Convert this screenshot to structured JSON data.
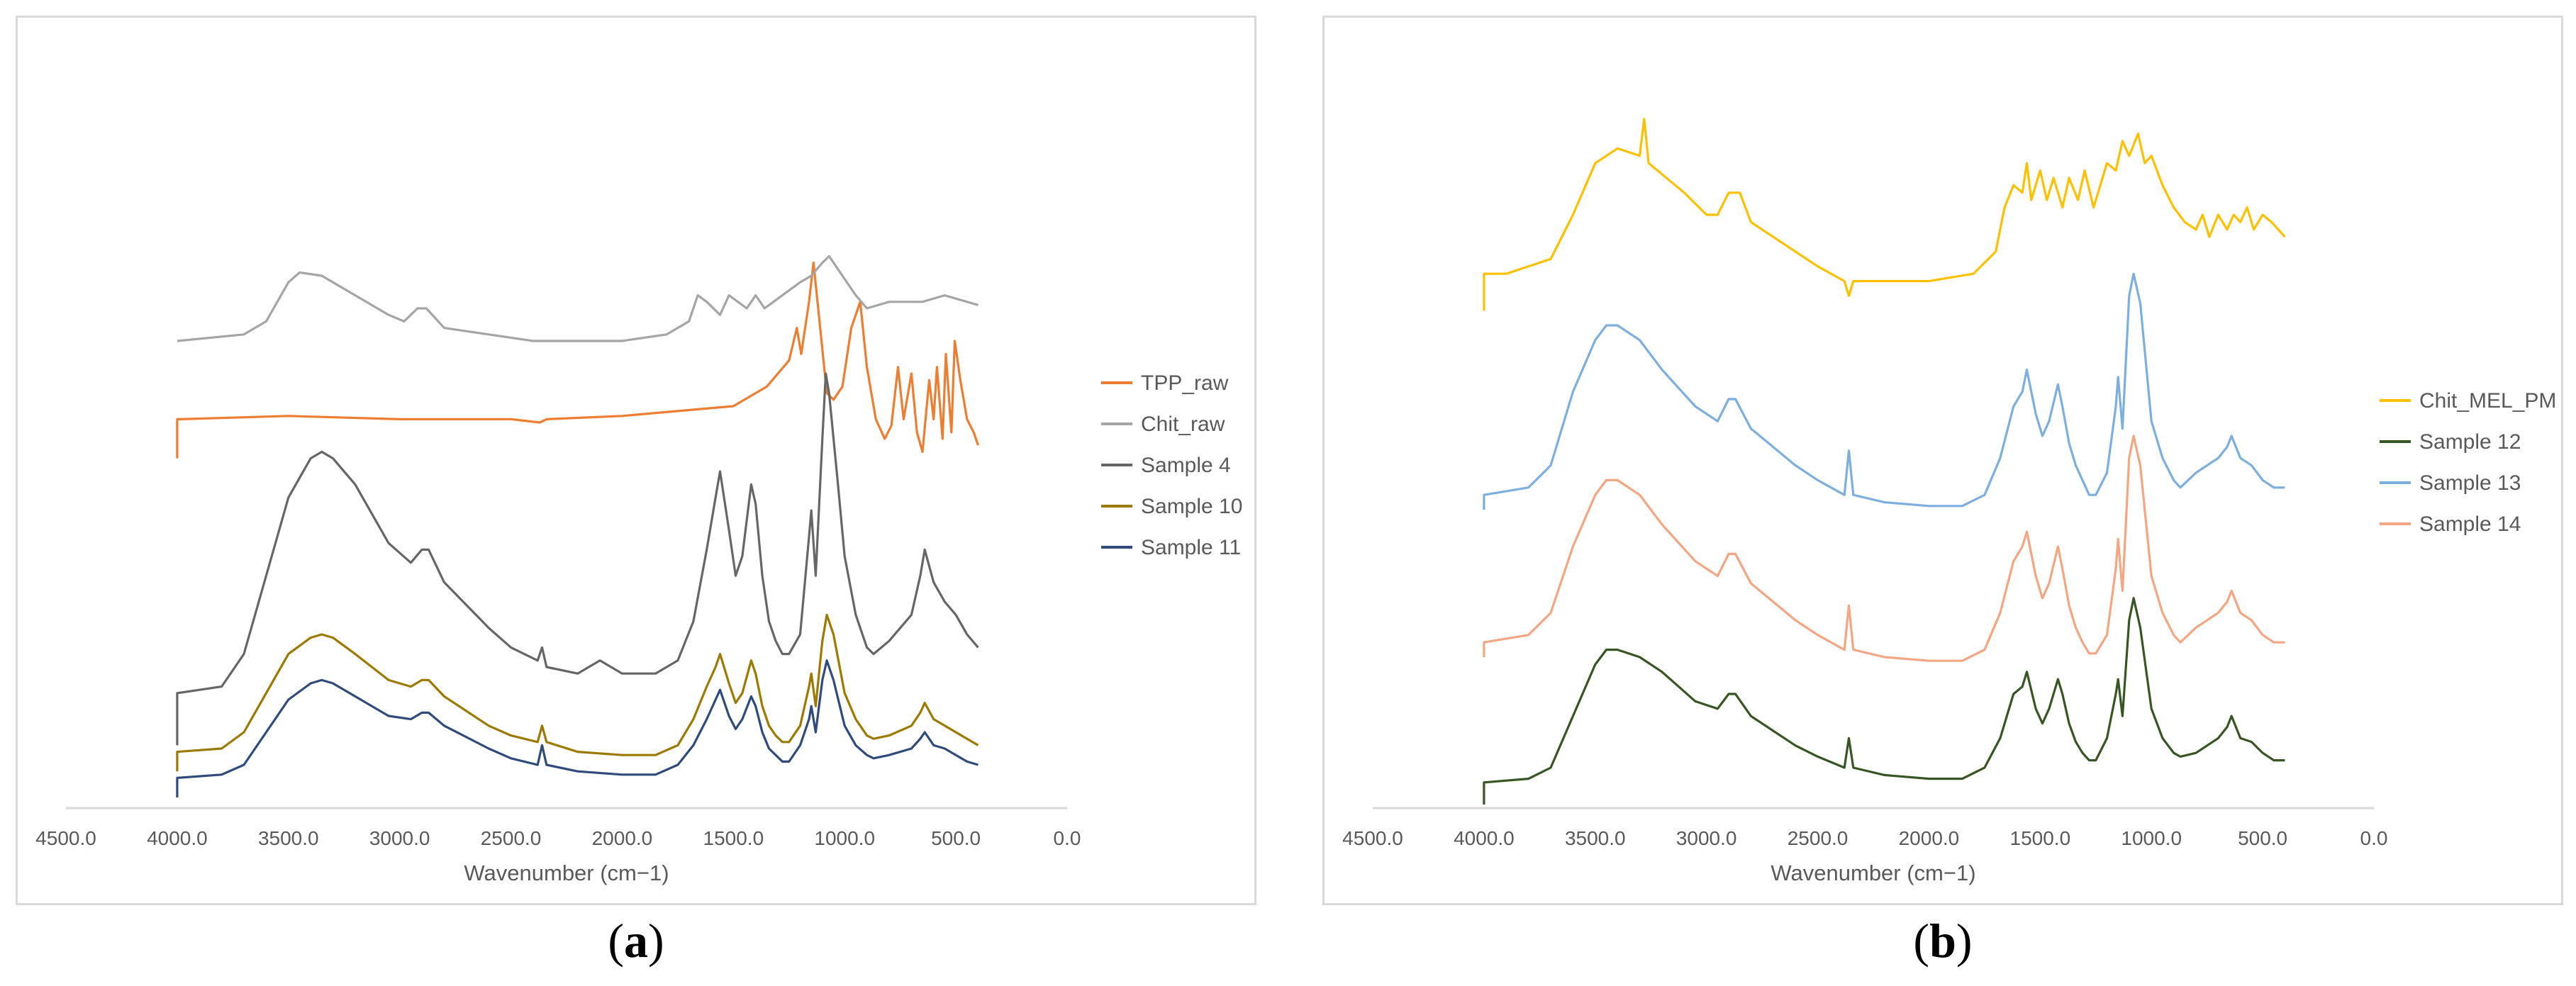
{
  "captions": {
    "a": "a",
    "b": "b"
  },
  "chart_data": [
    {
      "type": "line",
      "panel": "a",
      "title": "",
      "xlabel": "Wavenumber (cm−1)",
      "ylabel": "",
      "xlim": [
        4500,
        0
      ],
      "x_reversed": true,
      "xticks": [
        "4500.0",
        "4000.0",
        "3500.0",
        "3000.0",
        "2500.0",
        "2000.0",
        "1500.0",
        "1000.0",
        "500.0",
        "0.0"
      ],
      "xtick_values": [
        4500,
        4000,
        3500,
        3000,
        2500,
        2000,
        1500,
        1000,
        500,
        0
      ],
      "ylim": [
        0,
        100
      ],
      "legend_position": "right",
      "series": [
        {
          "name": "TPP_raw",
          "color": "#ed7d31",
          "x": [
            4000,
            4000,
            3990,
            3500,
            3000,
            2500,
            2370,
            2340,
            2000,
            1500,
            1350,
            1250,
            1215,
            1195,
            1160,
            1140,
            1110,
            1080,
            1050,
            1010,
            970,
            930,
            900,
            860,
            820,
            790,
            760,
            735,
            700,
            675,
            650,
            620,
            600,
            585,
            560,
            545,
            520,
            505,
            480,
            450,
            420,
            400
          ],
          "y": [
            52,
            58,
            58,
            58.5,
            58,
            58,
            57.5,
            58,
            58.5,
            60,
            63,
            67,
            72,
            68,
            76,
            82,
            72,
            62,
            61,
            63,
            72,
            76,
            66,
            58,
            55,
            57,
            66,
            58,
            65,
            56,
            53,
            64,
            58,
            66,
            55,
            68,
            56,
            70,
            64,
            58,
            56,
            54
          ]
        },
        {
          "name": "Chit_raw",
          "color": "#a5a5a5",
          "x": [
            4000,
            3700,
            3600,
            3500,
            3450,
            3350,
            3200,
            3050,
            2980,
            2920,
            2880,
            2800,
            2600,
            2400,
            2000,
            1800,
            1700,
            1660,
            1620,
            1560,
            1520,
            1440,
            1400,
            1360,
            1320,
            1200,
            1150,
            1100,
            1070,
            1030,
            950,
            900,
            800,
            650,
            550,
            450,
            400
          ],
          "y": [
            70,
            71,
            73,
            79,
            80.5,
            80,
            77,
            74,
            73,
            75,
            75,
            72,
            71,
            70,
            70,
            71,
            73,
            77,
            76,
            74,
            77,
            75,
            77,
            75,
            76,
            79,
            80,
            82,
            83,
            81,
            77,
            75,
            76,
            76,
            77,
            76,
            75.5
          ]
        },
        {
          "name": "Sample 4",
          "color": "#666666",
          "x": [
            4000,
            4000,
            3800,
            3700,
            3600,
            3500,
            3400,
            3350,
            3300,
            3200,
            3050,
            2950,
            2900,
            2870,
            2800,
            2600,
            2500,
            2380,
            2360,
            2340,
            2200,
            2100,
            2000,
            1850,
            1750,
            1680,
            1620,
            1580,
            1560,
            1520,
            1490,
            1460,
            1420,
            1400,
            1370,
            1340,
            1310,
            1280,
            1250,
            1200,
            1160,
            1150,
            1130,
            1100,
            1085,
            1070,
            1030,
            1000,
            950,
            900,
            870,
            800,
            700,
            660,
            640,
            600,
            550,
            500,
            450,
            400
          ],
          "y": [
            8,
            16,
            17,
            22,
            34,
            46,
            52,
            53,
            52,
            48,
            39,
            36,
            38,
            38,
            33,
            26,
            23,
            21,
            23,
            20,
            19,
            21,
            19,
            19,
            21,
            27,
            38,
            46,
            50,
            41,
            34,
            37,
            48,
            45,
            34,
            27,
            24,
            22,
            22,
            25,
            40,
            44,
            34,
            55,
            65,
            62,
            48,
            37,
            28,
            23,
            22,
            24,
            28,
            34,
            38,
            33,
            30,
            28,
            25,
            23
          ]
        },
        {
          "name": "Sample 10",
          "color": "#9c7a00",
          "x": [
            4000,
            4000,
            3800,
            3700,
            3600,
            3500,
            3400,
            3350,
            3300,
            3200,
            3050,
            2950,
            2900,
            2870,
            2800,
            2600,
            2500,
            2380,
            2360,
            2340,
            2200,
            2000,
            1850,
            1750,
            1680,
            1620,
            1580,
            1560,
            1520,
            1490,
            1460,
            1420,
            1400,
            1370,
            1340,
            1310,
            1280,
            1250,
            1200,
            1160,
            1150,
            1130,
            1100,
            1080,
            1050,
            1000,
            950,
            900,
            870,
            800,
            700,
            660,
            640,
            600,
            550,
            500,
            450,
            400
          ],
          "y": [
            4,
            7,
            7.5,
            10,
            16,
            22,
            24.5,
            25,
            24.5,
            22,
            18,
            17,
            18,
            18,
            15.5,
            11,
            9.5,
            8.5,
            11,
            8.5,
            7,
            6.5,
            6.5,
            8,
            12,
            17,
            20,
            22,
            17.5,
            14.5,
            16,
            21,
            19,
            14,
            11,
            9.5,
            8.5,
            8.5,
            11,
            17,
            19,
            14,
            24,
            28,
            25,
            16,
            12,
            9.5,
            9,
            9.5,
            11,
            13,
            14.5,
            12,
            11,
            10,
            9,
            8
          ]
        },
        {
          "name": "Sample 11",
          "color": "#2f4b7c",
          "x": [
            4000,
            4000,
            3800,
            3700,
            3600,
            3500,
            3400,
            3350,
            3300,
            3200,
            3050,
            2950,
            2900,
            2870,
            2800,
            2600,
            2500,
            2380,
            2360,
            2340,
            2200,
            2000,
            1850,
            1750,
            1680,
            1620,
            1580,
            1560,
            1520,
            1490,
            1460,
            1420,
            1400,
            1370,
            1340,
            1310,
            1280,
            1250,
            1200,
            1160,
            1150,
            1130,
            1100,
            1080,
            1050,
            1000,
            950,
            900,
            870,
            800,
            700,
            660,
            640,
            600,
            550,
            500,
            450,
            400
          ],
          "y": [
            0,
            3,
            3.5,
            5,
            10,
            15,
            17.5,
            18,
            17.5,
            15.5,
            12.5,
            12,
            13,
            13,
            11,
            7.5,
            6,
            5,
            8,
            5,
            4,
            3.5,
            3.5,
            5,
            8,
            12,
            15,
            16.5,
            12.5,
            10.5,
            12,
            15.5,
            14,
            10,
            7.5,
            6.5,
            5.5,
            5.5,
            8,
            12,
            14,
            10,
            18,
            21,
            18,
            11,
            8,
            6.5,
            6,
            6.5,
            7.5,
            9,
            10,
            8,
            7.5,
            6.5,
            5.5,
            5
          ]
        }
      ]
    },
    {
      "type": "line",
      "panel": "b",
      "title": "",
      "xlabel": "Wavenumber (cm−1)",
      "ylabel": "",
      "xlim": [
        4500,
        0
      ],
      "x_reversed": true,
      "xticks": [
        "4500.0",
        "4000.0",
        "3500.0",
        "3000.0",
        "2500.0",
        "2000.0",
        "1500.0",
        "1000.0",
        "500.0",
        "0.0"
      ],
      "xtick_values": [
        4500,
        4000,
        3500,
        3000,
        2500,
        2000,
        1500,
        1000,
        500,
        0
      ],
      "ylim": [
        0,
        100
      ],
      "legend_position": "right",
      "series": [
        {
          "name": "Chit_MEL_PM",
          "color": "#ffc000",
          "x": [
            4000,
            4000,
            3900,
            3700,
            3600,
            3500,
            3400,
            3300,
            3280,
            3260,
            3100,
            3000,
            2950,
            2900,
            2850,
            2800,
            2500,
            2380,
            2360,
            2340,
            2000,
            1800,
            1700,
            1660,
            1620,
            1580,
            1560,
            1540,
            1500,
            1470,
            1440,
            1400,
            1370,
            1330,
            1300,
            1260,
            1230,
            1200,
            1160,
            1130,
            1100,
            1060,
            1030,
            1000,
            950,
            900,
            850,
            800,
            770,
            740,
            700,
            660,
            630,
            600,
            570,
            540,
            500,
            460,
            430,
            400
          ],
          "y": [
            67,
            72,
            72,
            74,
            80,
            87,
            89,
            88,
            93,
            87,
            83,
            80,
            80,
            83,
            83,
            79,
            73,
            71,
            69,
            71,
            71,
            72,
            75,
            81,
            84,
            83,
            87,
            82,
            86,
            82,
            85,
            81,
            85,
            82,
            86,
            81,
            84,
            87,
            86,
            90,
            88,
            91,
            87,
            88,
            84,
            81,
            79,
            78,
            80,
            77,
            80,
            78,
            80,
            79,
            81,
            78,
            80,
            79,
            78,
            77
          ]
        },
        {
          "name": "Sample 12",
          "color": "#375623",
          "x": [
            4000,
            4000,
            3800,
            3700,
            3600,
            3500,
            3450,
            3400,
            3300,
            3200,
            3050,
            2950,
            2900,
            2870,
            2800,
            2600,
            2500,
            2380,
            2360,
            2340,
            2200,
            2000,
            1850,
            1750,
            1680,
            1620,
            1580,
            1560,
            1520,
            1490,
            1460,
            1420,
            1400,
            1370,
            1340,
            1310,
            1280,
            1250,
            1200,
            1160,
            1150,
            1130,
            1100,
            1080,
            1050,
            1000,
            950,
            900,
            870,
            800,
            700,
            660,
            640,
            600,
            550,
            500,
            450,
            400
          ],
          "y": [
            0,
            3,
            3.5,
            5,
            12,
            19,
            21,
            21,
            20,
            18,
            14,
            13,
            15,
            15,
            12,
            8,
            6.5,
            5,
            9,
            5,
            4,
            3.5,
            3.5,
            5,
            9,
            15,
            16,
            18,
            13,
            11,
            13,
            17,
            15,
            11,
            8.5,
            7,
            6,
            6,
            9,
            15,
            17,
            12,
            25,
            28,
            24,
            13,
            9,
            7,
            6.5,
            7,
            9,
            10.5,
            12,
            9,
            8.5,
            7,
            6,
            6
          ]
        },
        {
          "name": "Sample 13",
          "color": "#7cafdd",
          "x": [
            4000,
            4000,
            3800,
            3700,
            3600,
            3500,
            3450,
            3400,
            3300,
            3200,
            3050,
            2950,
            2900,
            2870,
            2800,
            2600,
            2500,
            2380,
            2360,
            2340,
            2200,
            2000,
            1850,
            1750,
            1680,
            1620,
            1580,
            1560,
            1520,
            1490,
            1460,
            1420,
            1400,
            1370,
            1340,
            1310,
            1280,
            1250,
            1200,
            1160,
            1150,
            1130,
            1100,
            1080,
            1050,
            1000,
            950,
            900,
            870,
            800,
            700,
            660,
            640,
            600,
            550,
            500,
            450,
            400
          ],
          "y": [
            40,
            42,
            43,
            46,
            56,
            63,
            65,
            65,
            63,
            59,
            54,
            52,
            55,
            55,
            51,
            46,
            44,
            42,
            48,
            42,
            41,
            40.5,
            40.5,
            42,
            47,
            54,
            56,
            59,
            53,
            50,
            52,
            57,
            54,
            49,
            46,
            44,
            42,
            42,
            45,
            54,
            58,
            51,
            69,
            72,
            68,
            52,
            47,
            44,
            43,
            45,
            47,
            48.5,
            50,
            47,
            46,
            44,
            43,
            43
          ]
        },
        {
          "name": "Sample 14",
          "color": "#f4a582",
          "x": [
            4000,
            4000,
            3800,
            3700,
            3600,
            3500,
            3450,
            3400,
            3300,
            3200,
            3050,
            2950,
            2900,
            2870,
            2800,
            2600,
            2500,
            2380,
            2360,
            2340,
            2200,
            2000,
            1850,
            1750,
            1680,
            1620,
            1580,
            1560,
            1520,
            1490,
            1460,
            1420,
            1400,
            1370,
            1340,
            1310,
            1280,
            1250,
            1200,
            1160,
            1150,
            1130,
            1100,
            1080,
            1050,
            1000,
            950,
            900,
            870,
            800,
            700,
            660,
            640,
            600,
            550,
            500,
            450,
            400
          ],
          "y": [
            20,
            22,
            23,
            26,
            35,
            42,
            44,
            44,
            42,
            38,
            33,
            31,
            34,
            34,
            30,
            25,
            23,
            21,
            27,
            21,
            20,
            19.5,
            19.5,
            21,
            26,
            33,
            35,
            37,
            31,
            28,
            30,
            35,
            32,
            27,
            24,
            22,
            20.5,
            20.5,
            23,
            32,
            36,
            29,
            47,
            50,
            46,
            31,
            26,
            23,
            22,
            24,
            26,
            27.5,
            29,
            26,
            25,
            23,
            22,
            22
          ]
        }
      ]
    }
  ]
}
